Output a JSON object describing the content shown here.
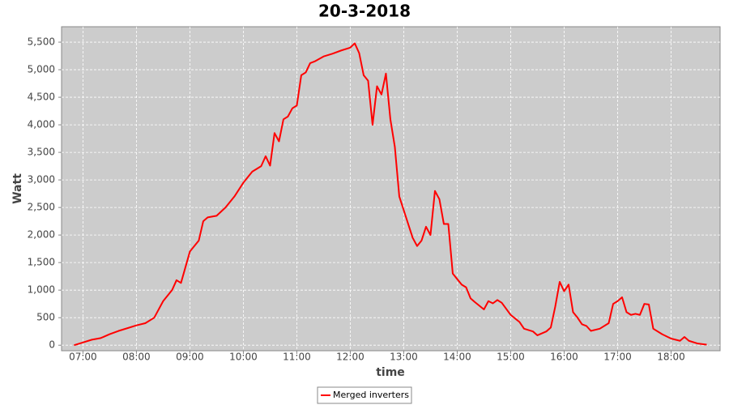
{
  "chart_data": {
    "type": "line",
    "title": "20-3-2018",
    "x_label": "time",
    "y_label": "Watt",
    "x": [
      "06:50",
      "07:00",
      "07:10",
      "07:20",
      "07:30",
      "07:40",
      "07:50",
      "08:00",
      "08:10",
      "08:20",
      "08:30",
      "08:40",
      "08:45",
      "08:50",
      "09:00",
      "09:10",
      "09:15",
      "09:20",
      "09:30",
      "09:40",
      "09:50",
      "10:00",
      "10:10",
      "10:20",
      "10:25",
      "10:30",
      "10:35",
      "10:40",
      "10:45",
      "10:50",
      "10:55",
      "11:00",
      "11:05",
      "11:10",
      "11:15",
      "11:20",
      "11:30",
      "11:40",
      "11:50",
      "12:00",
      "12:05",
      "12:10",
      "12:15",
      "12:20",
      "12:25",
      "12:30",
      "12:35",
      "12:40",
      "12:45",
      "12:50",
      "12:55",
      "13:00",
      "13:05",
      "13:10",
      "13:15",
      "13:20",
      "13:25",
      "13:30",
      "13:35",
      "13:40",
      "13:45",
      "13:50",
      "13:55",
      "14:00",
      "14:05",
      "14:10",
      "14:15",
      "14:20",
      "14:30",
      "14:35",
      "14:40",
      "14:45",
      "14:50",
      "15:00",
      "15:10",
      "15:15",
      "15:25",
      "15:30",
      "15:40",
      "15:45",
      "15:50",
      "15:55",
      "16:00",
      "16:05",
      "16:10",
      "16:15",
      "16:20",
      "16:25",
      "16:30",
      "16:40",
      "16:50",
      "16:55",
      "17:00",
      "17:05",
      "17:10",
      "17:15",
      "17:20",
      "17:25",
      "17:30",
      "17:35",
      "17:40",
      "17:50",
      "18:00",
      "18:10",
      "18:15",
      "18:20",
      "18:30",
      "18:40"
    ],
    "series": [
      {
        "name": "Merged inverters",
        "color": "#ff0000",
        "values": [
          0,
          50,
          100,
          130,
          200,
          260,
          310,
          360,
          400,
          500,
          800,
          1000,
          1180,
          1130,
          1700,
          1900,
          2250,
          2320,
          2350,
          2500,
          2700,
          2950,
          3150,
          3250,
          3430,
          3260,
          3850,
          3700,
          4100,
          4150,
          4300,
          4350,
          4900,
          4950,
          5120,
          5150,
          5240,
          5290,
          5350,
          5400,
          5480,
          5300,
          4900,
          4800,
          4000,
          4700,
          4550,
          4930,
          4100,
          3600,
          2700,
          2450,
          2200,
          1950,
          1800,
          1900,
          2150,
          2000,
          2800,
          2650,
          2200,
          2200,
          1300,
          1200,
          1100,
          1050,
          850,
          780,
          650,
          800,
          760,
          820,
          770,
          550,
          420,
          300,
          250,
          180,
          250,
          320,
          700,
          1150,
          980,
          1100,
          600,
          500,
          380,
          350,
          260,
          300,
          400,
          750,
          800,
          870,
          600,
          550,
          570,
          550,
          750,
          740,
          300,
          200,
          120,
          80,
          150,
          80,
          30,
          10
        ]
      }
    ],
    "xlim": [
      "06:36",
      "18:55"
    ],
    "xticks": [
      "07:00",
      "08:00",
      "09:00",
      "10:00",
      "11:00",
      "12:00",
      "13:00",
      "14:00",
      "15:00",
      "16:00",
      "17:00",
      "18:00"
    ],
    "ylim": [
      -100,
      5780
    ],
    "yticks": [
      0,
      500,
      {
        "value": 1000,
        "label": "1,000"
      },
      {
        "value": 1500,
        "label": "1,500"
      },
      {
        "value": 2000,
        "label": "2,000"
      },
      {
        "value": 2500,
        "label": "2,500"
      },
      {
        "value": 3000,
        "label": "3,000"
      },
      {
        "value": 3500,
        "label": "3,500"
      },
      {
        "value": 4000,
        "label": "4,000"
      },
      {
        "value": 4500,
        "label": "4,500"
      },
      {
        "value": 5000,
        "label": "5,000"
      },
      {
        "value": 5500,
        "label": "5,500"
      }
    ],
    "grid": true,
    "legend": "bottom"
  }
}
